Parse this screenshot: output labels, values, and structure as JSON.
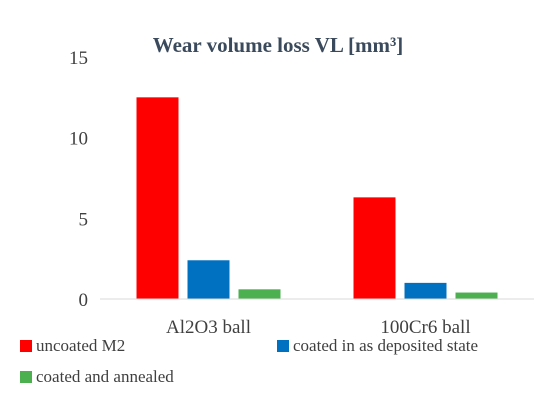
{
  "chart_data": {
    "type": "bar",
    "title": "Wear volume loss VL [mm³]",
    "xlabel": "",
    "ylabel": "",
    "categories": [
      "Al2O3 ball",
      "100Cr6 ball"
    ],
    "series": [
      {
        "name": "uncoated M2",
        "values": [
          12.5,
          6.3
        ],
        "color": "#ff0000"
      },
      {
        "name": "coated in as deposited state",
        "values": [
          2.4,
          1.0
        ],
        "color": "#0070c0"
      },
      {
        "name": "coated and annealed",
        "values": [
          0.6,
          0.4
        ],
        "color": "#4caf50"
      }
    ],
    "ylim": [
      0,
      15
    ],
    "yticks": [
      0,
      5,
      10,
      15
    ],
    "grid": false,
    "legend_position": "bottom"
  }
}
